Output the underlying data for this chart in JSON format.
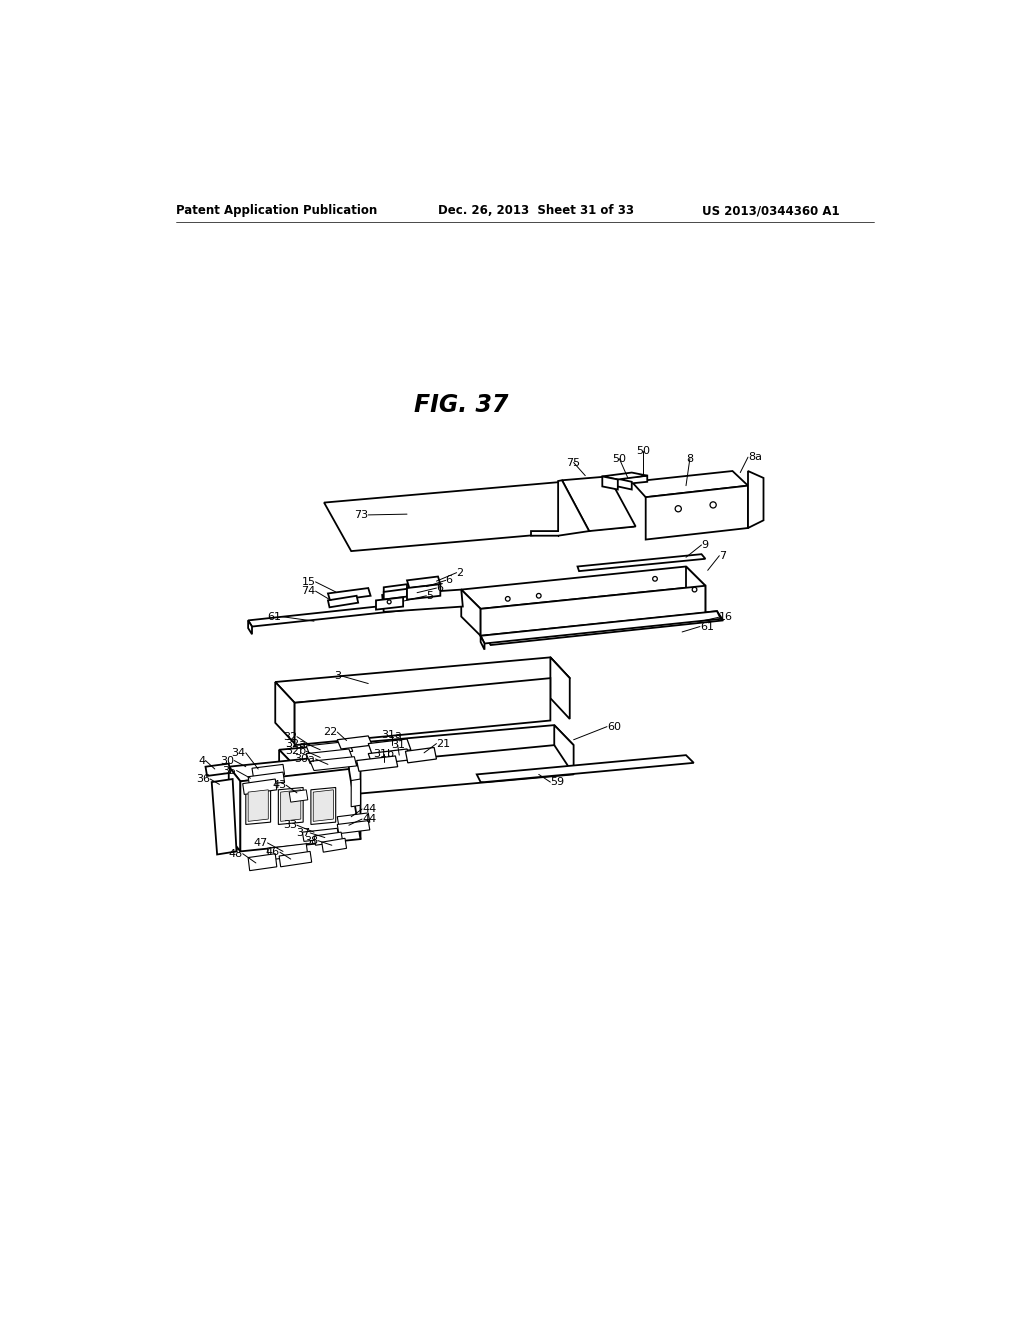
{
  "bg_color": "#ffffff",
  "header_left": "Patent Application Publication",
  "header_center": "Dec. 26, 2013  Sheet 31 of 33",
  "header_right": "US 2013/0344360 A1",
  "fig_label": "FIG. 37",
  "lc": "#000000",
  "lw": 1.3
}
